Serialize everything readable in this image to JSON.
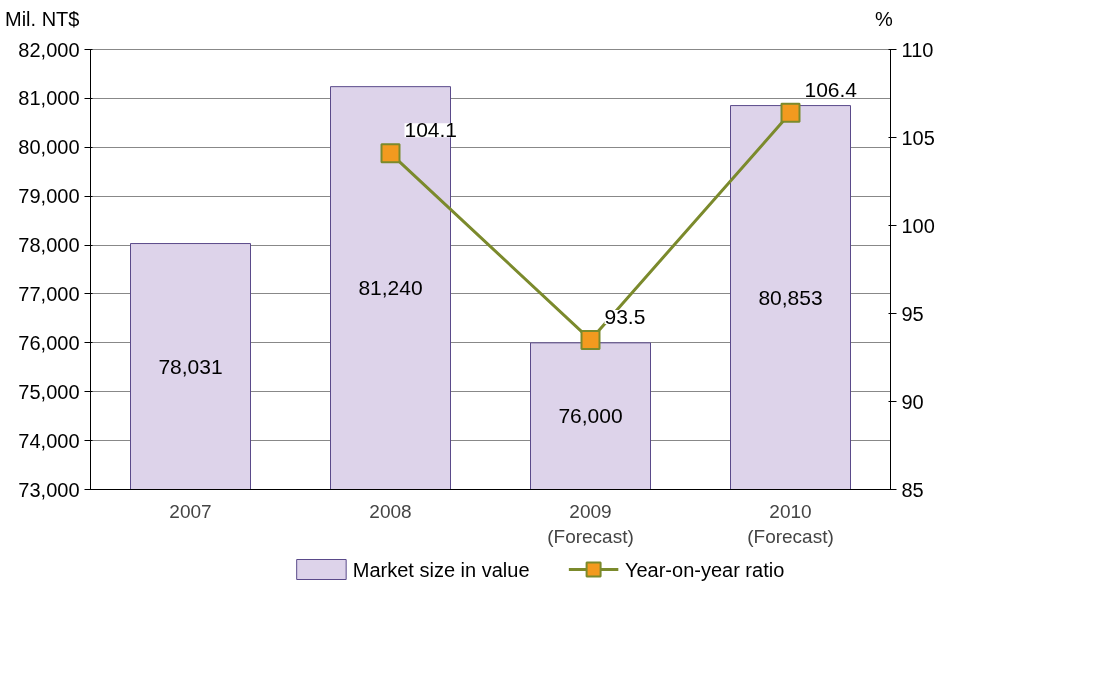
{
  "chart_data": {
    "type": "bar",
    "categories": [
      "2007",
      "2008",
      "2009\n(Forecast)",
      "2010\n(Forecast)"
    ],
    "ylabel": "Mil. NT$",
    "y2label": "%",
    "series": [
      {
        "name": "Market size in value",
        "color": "#ddd3ea",
        "values": [
          78031,
          81240,
          76000,
          80853
        ]
      },
      {
        "name": "Year-on-year ratio",
        "type": "line",
        "axis": "y2",
        "color": "#7b8a2c",
        "marker": "square",
        "values": [
          null,
          104.1,
          93.5,
          106.4
        ]
      }
    ],
    "ylim": [
      73000,
      82000
    ],
    "yticks": [
      {
        "value": 73000,
        "label": "73,000"
      },
      {
        "value": 74000,
        "label": "74,000"
      },
      {
        "value": 75000,
        "label": "75,000"
      },
      {
        "value": 76000,
        "label": "76,000"
      },
      {
        "value": 77000,
        "label": "77,000"
      },
      {
        "value": 78000,
        "label": "78,000"
      },
      {
        "value": 79000,
        "label": "79,000"
      },
      {
        "value": 80000,
        "label": "80,000"
      },
      {
        "value": 81000,
        "label": "81,000"
      },
      {
        "value": 82000,
        "label": "82,000"
      }
    ],
    "y2lim": [
      85,
      110
    ],
    "y2ticks": [
      85,
      90,
      95,
      100,
      105,
      110
    ],
    "value_labels": [
      [
        "78,031",
        "81,240",
        "76,000",
        "80,853"
      ],
      [
        null,
        "104.1",
        "93.5",
        "106.4"
      ]
    ],
    "grid": "y",
    "legend": "bottom"
  }
}
